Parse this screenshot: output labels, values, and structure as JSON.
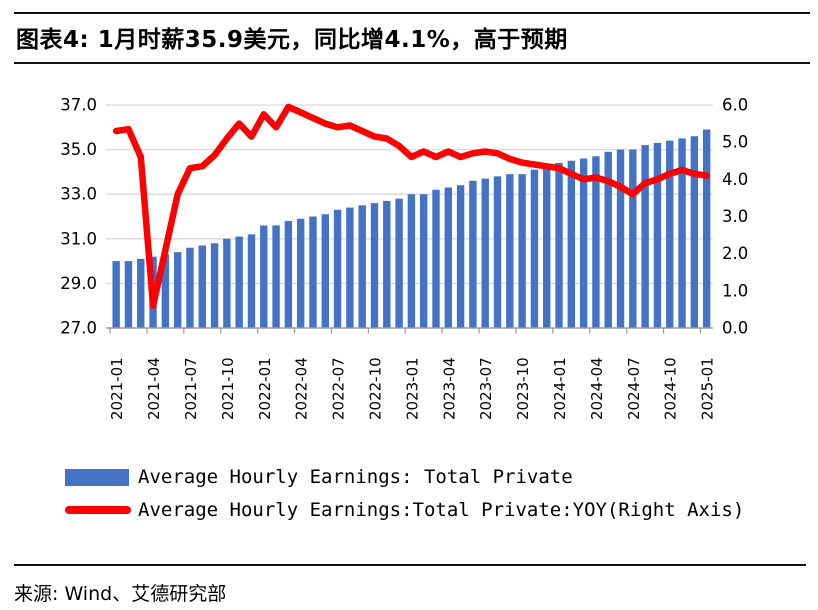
{
  "header": {
    "title": "图表4: 1月时薪35.9美元，同比增4.1%，高于预期"
  },
  "footer": {
    "source": "来源: Wind、艾德研究部"
  },
  "chart_data": {
    "type": "combo",
    "title": "图表4: 1月时薪35.9美元，同比增4.1%，高于预期",
    "grid": "horizontal",
    "legend_position": "bottom",
    "categories": [
      "2021-01",
      "2021-02",
      "2021-03",
      "2021-04",
      "2021-05",
      "2021-06",
      "2021-07",
      "2021-08",
      "2021-09",
      "2021-10",
      "2021-11",
      "2021-12",
      "2022-01",
      "2022-02",
      "2022-03",
      "2022-04",
      "2022-05",
      "2022-06",
      "2022-07",
      "2022-08",
      "2022-09",
      "2022-10",
      "2022-11",
      "2022-12",
      "2023-01",
      "2023-02",
      "2023-03",
      "2023-04",
      "2023-05",
      "2023-06",
      "2023-07",
      "2023-08",
      "2023-09",
      "2023-10",
      "2023-11",
      "2023-12",
      "2024-01",
      "2024-02",
      "2024-03",
      "2024-04",
      "2024-05",
      "2024-06",
      "2024-07",
      "2024-08",
      "2024-09",
      "2024-10",
      "2024-11",
      "2024-12",
      "2025-01"
    ],
    "x_tick_labels": [
      "2021-01",
      "2021-04",
      "2021-07",
      "2021-10",
      "2022-01",
      "2022-04",
      "2022-07",
      "2022-10",
      "2023-01",
      "2023-04",
      "2023-07",
      "2023-10",
      "2024-01",
      "2024-04",
      "2024-07",
      "2024-10",
      "2025-01"
    ],
    "series": [
      {
        "name": "Average Hourly Earnings: Total Private",
        "type": "bar",
        "axis": "left",
        "color": "#4472C4",
        "values": [
          30.0,
          30.0,
          30.1,
          30.2,
          30.3,
          30.4,
          30.6,
          30.7,
          30.8,
          31.0,
          31.1,
          31.2,
          31.6,
          31.6,
          31.8,
          31.9,
          32.0,
          32.1,
          32.3,
          32.4,
          32.5,
          32.6,
          32.7,
          32.8,
          33.0,
          33.0,
          33.2,
          33.3,
          33.4,
          33.6,
          33.7,
          33.8,
          33.9,
          33.9,
          34.1,
          34.2,
          34.4,
          34.5,
          34.6,
          34.7,
          34.9,
          35.0,
          35.0,
          35.2,
          35.3,
          35.4,
          35.5,
          35.6,
          35.9
        ]
      },
      {
        "name": "Average Hourly Earnings:Total Private:YOY(Right Axis)",
        "type": "line",
        "axis": "right",
        "color": "#FF0000",
        "values": [
          5.3,
          5.35,
          4.6,
          0.6,
          2.1,
          3.6,
          4.3,
          4.35,
          4.65,
          5.1,
          5.5,
          5.15,
          5.75,
          5.4,
          5.95,
          5.8,
          5.65,
          5.5,
          5.4,
          5.45,
          5.3,
          5.15,
          5.1,
          4.9,
          4.6,
          4.75,
          4.6,
          4.75,
          4.6,
          4.7,
          4.75,
          4.7,
          4.55,
          4.45,
          4.4,
          4.35,
          4.3,
          4.15,
          4.0,
          4.05,
          3.95,
          3.8,
          3.6,
          3.9,
          4.0,
          4.15,
          4.25,
          4.15,
          4.1
        ]
      }
    ],
    "left_axis": {
      "min": 27.0,
      "max": 37.0,
      "tick_step": 2.0,
      "tick_labels": [
        "37.0",
        "35.0",
        "33.0",
        "31.0",
        "29.0",
        "27.0"
      ]
    },
    "right_axis": {
      "min": 0.0,
      "max": 6.0,
      "tick_step": 1.0,
      "tick_labels": [
        "6.0",
        "5.0",
        "4.0",
        "3.0",
        "2.0",
        "1.0",
        "0.0"
      ]
    },
    "colors": {
      "gridline": "#D9D9D9",
      "axis_line": "#999999",
      "tick": "#999999",
      "label_text": "#000000"
    }
  }
}
